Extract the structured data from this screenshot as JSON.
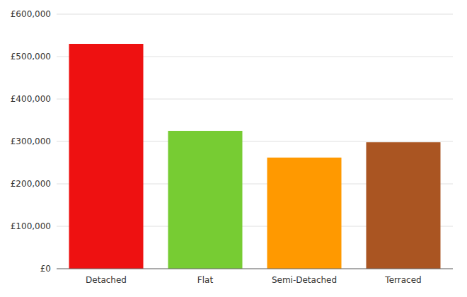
{
  "chart_data": {
    "type": "bar",
    "categories": [
      "Detached",
      "Flat",
      "Semi-Detached",
      "Terraced"
    ],
    "values": [
      530000,
      325000,
      262000,
      298000
    ],
    "colors": [
      "#ee1111",
      "#77cc33",
      "#ff9900",
      "#aa5522"
    ],
    "ylim": [
      0,
      600000
    ],
    "yticks": [
      {
        "value": 0,
        "label": "£0"
      },
      {
        "value": 100000,
        "label": "£100,000"
      },
      {
        "value": 200000,
        "label": "£200,000"
      },
      {
        "value": 300000,
        "label": "£300,000"
      },
      {
        "value": 400000,
        "label": "£400,000"
      },
      {
        "value": 500000,
        "label": "£500,000"
      },
      {
        "value": 600000,
        "label": "£600,000"
      }
    ],
    "grid": true
  }
}
